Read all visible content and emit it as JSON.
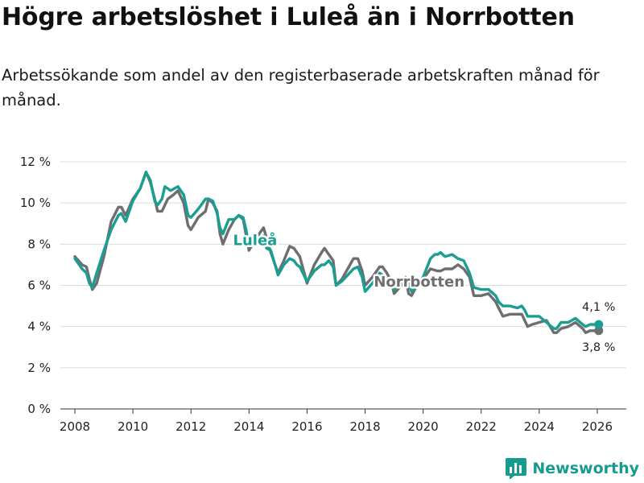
{
  "header": {
    "title": "Högre arbetslöshet i Luleå än i Norrbotten",
    "subtitle": "Arbetssökande som andel av den registerbaserade arbetskraften månad för månad."
  },
  "colors": {
    "lulea": "#1a9e92",
    "norrbotten": "#6e6e6e"
  },
  "brand": {
    "name": "Newsworthy",
    "icon": "newsworthy-logo-icon"
  },
  "chart_data": {
    "type": "line",
    "title": "Högre arbetslöshet i Luleå än i Norrbotten",
    "xlabel": "",
    "ylabel": "",
    "xlim": [
      2007.5,
      2027.0
    ],
    "ylim": [
      0,
      12
    ],
    "yticks": [
      0,
      2,
      4,
      6,
      8,
      10,
      12
    ],
    "ytick_labels": [
      "0 %",
      "2 %",
      "4 %",
      "6 %",
      "8 %",
      "10 %",
      "12 %"
    ],
    "xticks": [
      2008,
      2010,
      2012,
      2014,
      2016,
      2018,
      2020,
      2022,
      2024,
      2026
    ],
    "xtick_labels": [
      "2008",
      "2010",
      "2012",
      "2014",
      "2016",
      "2018",
      "2020",
      "2022",
      "2024",
      "2026"
    ],
    "grid": true,
    "series": [
      {
        "name": "Norrbotten",
        "label": "Norrbotten",
        "end_label": "3,8 %",
        "points": [
          [
            2008.0,
            7.4
          ],
          [
            2008.25,
            7.0
          ],
          [
            2008.4,
            6.9
          ],
          [
            2008.5,
            6.3
          ],
          [
            2008.6,
            5.8
          ],
          [
            2008.75,
            6.1
          ],
          [
            2009.0,
            7.4
          ],
          [
            2009.25,
            9.1
          ],
          [
            2009.5,
            9.8
          ],
          [
            2009.6,
            9.8
          ],
          [
            2009.75,
            9.4
          ],
          [
            2010.0,
            10.2
          ],
          [
            2010.25,
            10.7
          ],
          [
            2010.45,
            11.5
          ],
          [
            2010.6,
            11.0
          ],
          [
            2010.75,
            10.2
          ],
          [
            2010.85,
            9.6
          ],
          [
            2011.0,
            9.6
          ],
          [
            2011.2,
            10.2
          ],
          [
            2011.4,
            10.4
          ],
          [
            2011.55,
            10.6
          ],
          [
            2011.75,
            10.0
          ],
          [
            2011.9,
            8.9
          ],
          [
            2012.0,
            8.7
          ],
          [
            2012.25,
            9.3
          ],
          [
            2012.5,
            9.6
          ],
          [
            2012.6,
            10.2
          ],
          [
            2012.75,
            10.0
          ],
          [
            2012.9,
            9.6
          ],
          [
            2013.0,
            8.5
          ],
          [
            2013.1,
            8.0
          ],
          [
            2013.3,
            8.7
          ],
          [
            2013.5,
            9.2
          ],
          [
            2013.65,
            9.4
          ],
          [
            2013.8,
            9.2
          ],
          [
            2014.0,
            7.7
          ],
          [
            2014.25,
            8.3
          ],
          [
            2014.5,
            8.8
          ],
          [
            2014.75,
            7.6
          ],
          [
            2015.0,
            6.6
          ],
          [
            2015.2,
            7.2
          ],
          [
            2015.4,
            7.9
          ],
          [
            2015.55,
            7.8
          ],
          [
            2015.65,
            7.6
          ],
          [
            2015.75,
            7.4
          ],
          [
            2016.0,
            6.1
          ],
          [
            2016.25,
            7.0
          ],
          [
            2016.5,
            7.6
          ],
          [
            2016.6,
            7.8
          ],
          [
            2016.75,
            7.5
          ],
          [
            2016.9,
            7.2
          ],
          [
            2017.0,
            6.0
          ],
          [
            2017.2,
            6.3
          ],
          [
            2017.4,
            6.8
          ],
          [
            2017.6,
            7.3
          ],
          [
            2017.75,
            7.3
          ],
          [
            2017.9,
            6.7
          ],
          [
            2018.0,
            6.0
          ],
          [
            2018.25,
            6.4
          ],
          [
            2018.5,
            6.9
          ],
          [
            2018.6,
            6.9
          ],
          [
            2018.75,
            6.6
          ],
          [
            2018.9,
            6.2
          ],
          [
            2019.0,
            5.6
          ],
          [
            2019.25,
            6.0
          ],
          [
            2019.4,
            6.3
          ],
          [
            2019.5,
            5.6
          ],
          [
            2019.6,
            5.5
          ],
          [
            2019.75,
            5.9
          ],
          [
            2020.0,
            6.3
          ],
          [
            2020.25,
            6.8
          ],
          [
            2020.5,
            6.7
          ],
          [
            2020.6,
            6.7
          ],
          [
            2020.75,
            6.8
          ],
          [
            2021.0,
            6.8
          ],
          [
            2021.2,
            7.0
          ],
          [
            2021.4,
            6.8
          ],
          [
            2021.6,
            6.4
          ],
          [
            2021.75,
            5.5
          ],
          [
            2022.0,
            5.5
          ],
          [
            2022.25,
            5.6
          ],
          [
            2022.5,
            5.2
          ],
          [
            2022.6,
            4.9
          ],
          [
            2022.75,
            4.5
          ],
          [
            2023.0,
            4.6
          ],
          [
            2023.25,
            4.6
          ],
          [
            2023.4,
            4.6
          ],
          [
            2023.5,
            4.3
          ],
          [
            2023.6,
            4.0
          ],
          [
            2023.75,
            4.1
          ],
          [
            2024.0,
            4.2
          ],
          [
            2024.25,
            4.3
          ],
          [
            2024.5,
            3.7
          ],
          [
            2024.6,
            3.7
          ],
          [
            2024.75,
            3.9
          ],
          [
            2025.0,
            4.0
          ],
          [
            2025.25,
            4.2
          ],
          [
            2025.5,
            3.9
          ],
          [
            2025.6,
            3.7
          ],
          [
            2025.75,
            3.8
          ],
          [
            2026.0,
            3.8
          ],
          [
            2026.05,
            3.8
          ]
        ]
      },
      {
        "name": "Luleå",
        "label": "Luleå",
        "end_label": "4,1 %",
        "points": [
          [
            2008.0,
            7.3
          ],
          [
            2008.25,
            6.8
          ],
          [
            2008.4,
            6.6
          ],
          [
            2008.5,
            6.1
          ],
          [
            2008.6,
            5.9
          ],
          [
            2008.75,
            6.6
          ],
          [
            2009.0,
            7.7
          ],
          [
            2009.25,
            8.7
          ],
          [
            2009.5,
            9.4
          ],
          [
            2009.6,
            9.5
          ],
          [
            2009.75,
            9.1
          ],
          [
            2010.0,
            10.1
          ],
          [
            2010.25,
            10.7
          ],
          [
            2010.45,
            11.5
          ],
          [
            2010.6,
            11.1
          ],
          [
            2010.75,
            10.1
          ],
          [
            2010.85,
            9.9
          ],
          [
            2011.0,
            10.2
          ],
          [
            2011.1,
            10.8
          ],
          [
            2011.3,
            10.6
          ],
          [
            2011.55,
            10.8
          ],
          [
            2011.75,
            10.4
          ],
          [
            2011.9,
            9.4
          ],
          [
            2012.0,
            9.3
          ],
          [
            2012.25,
            9.7
          ],
          [
            2012.5,
            10.2
          ],
          [
            2012.6,
            10.2
          ],
          [
            2012.75,
            10.1
          ],
          [
            2012.9,
            9.5
          ],
          [
            2013.0,
            8.8
          ],
          [
            2013.1,
            8.5
          ],
          [
            2013.3,
            9.2
          ],
          [
            2013.5,
            9.2
          ],
          [
            2013.65,
            9.4
          ],
          [
            2013.8,
            9.3
          ],
          [
            2013.9,
            8.7
          ],
          [
            2014.0,
            7.9
          ],
          [
            2014.25,
            8.1
          ],
          [
            2014.5,
            8.4
          ],
          [
            2014.6,
            7.8
          ],
          [
            2014.75,
            7.7
          ],
          [
            2015.0,
            6.5
          ],
          [
            2015.2,
            7.0
          ],
          [
            2015.4,
            7.3
          ],
          [
            2015.55,
            7.2
          ],
          [
            2015.65,
            7.0
          ],
          [
            2015.75,
            6.9
          ],
          [
            2016.0,
            6.2
          ],
          [
            2016.25,
            6.7
          ],
          [
            2016.5,
            7.0
          ],
          [
            2016.6,
            7.0
          ],
          [
            2016.75,
            7.2
          ],
          [
            2016.9,
            6.9
          ],
          [
            2017.0,
            6.0
          ],
          [
            2017.2,
            6.2
          ],
          [
            2017.4,
            6.5
          ],
          [
            2017.6,
            6.8
          ],
          [
            2017.75,
            6.9
          ],
          [
            2017.9,
            6.4
          ],
          [
            2018.0,
            5.7
          ],
          [
            2018.25,
            6.1
          ],
          [
            2018.5,
            6.6
          ],
          [
            2018.6,
            6.5
          ],
          [
            2018.75,
            6.3
          ],
          [
            2018.9,
            6.0
          ],
          [
            2019.0,
            5.8
          ],
          [
            2019.25,
            6.1
          ],
          [
            2019.4,
            6.4
          ],
          [
            2019.5,
            6.1
          ],
          [
            2019.6,
            5.7
          ],
          [
            2019.75,
            5.9
          ],
          [
            2020.0,
            6.4
          ],
          [
            2020.25,
            7.3
          ],
          [
            2020.4,
            7.5
          ],
          [
            2020.5,
            7.5
          ],
          [
            2020.6,
            7.6
          ],
          [
            2020.75,
            7.4
          ],
          [
            2021.0,
            7.5
          ],
          [
            2021.2,
            7.3
          ],
          [
            2021.4,
            7.2
          ],
          [
            2021.6,
            6.6
          ],
          [
            2021.75,
            5.9
          ],
          [
            2022.0,
            5.8
          ],
          [
            2022.25,
            5.8
          ],
          [
            2022.5,
            5.5
          ],
          [
            2022.6,
            5.2
          ],
          [
            2022.75,
            5.0
          ],
          [
            2023.0,
            5.0
          ],
          [
            2023.25,
            4.9
          ],
          [
            2023.4,
            5.0
          ],
          [
            2023.5,
            4.8
          ],
          [
            2023.6,
            4.5
          ],
          [
            2023.75,
            4.5
          ],
          [
            2024.0,
            4.5
          ],
          [
            2024.25,
            4.2
          ],
          [
            2024.5,
            3.9
          ],
          [
            2024.6,
            3.9
          ],
          [
            2024.75,
            4.2
          ],
          [
            2025.0,
            4.2
          ],
          [
            2025.25,
            4.4
          ],
          [
            2025.5,
            4.1
          ],
          [
            2025.6,
            4.0
          ],
          [
            2025.75,
            4.1
          ],
          [
            2026.0,
            4.1
          ],
          [
            2026.05,
            4.1
          ]
        ]
      }
    ]
  }
}
